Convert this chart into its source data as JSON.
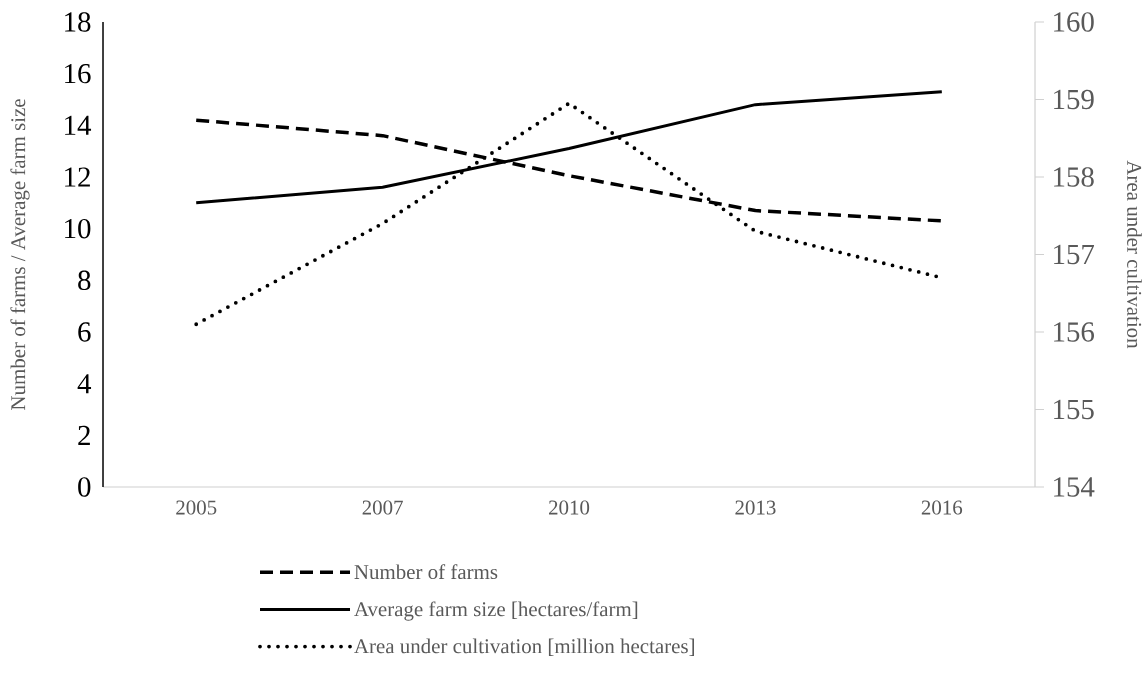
{
  "chart_data": {
    "type": "line",
    "ylabel": "Number of farms / Average farm size",
    "y2label": "Area under cultivation",
    "categories": [
      "2005",
      "2007",
      "2010",
      "2013",
      "2016"
    ],
    "ylim": [
      0,
      18
    ],
    "yticks": [
      0,
      2,
      4,
      6,
      8,
      10,
      12,
      14,
      16,
      18
    ],
    "y2lim": [
      154,
      160
    ],
    "y2ticks": [
      154,
      155,
      156,
      157,
      158,
      159,
      160
    ],
    "legend": "bottom",
    "series": [
      {
        "name": "Number of farms",
        "color": "#000000",
        "line_style": "dashed",
        "values": [
          14.2,
          13.6,
          12.05,
          10.7,
          10.3
        ]
      },
      {
        "name": "Average farm size [hectares/farm]",
        "color": "#000000",
        "line_style": "solid",
        "values": [
          11.0,
          11.6,
          13.1,
          14.8,
          15.3
        ]
      },
      {
        "name": "Area under cultivation [million hectares]",
        "color": "#000000",
        "line_style": "dotted",
        "axis": "y2",
        "values": [
          156.1,
          157.4,
          158.95,
          157.3,
          156.7
        ]
      }
    ]
  }
}
